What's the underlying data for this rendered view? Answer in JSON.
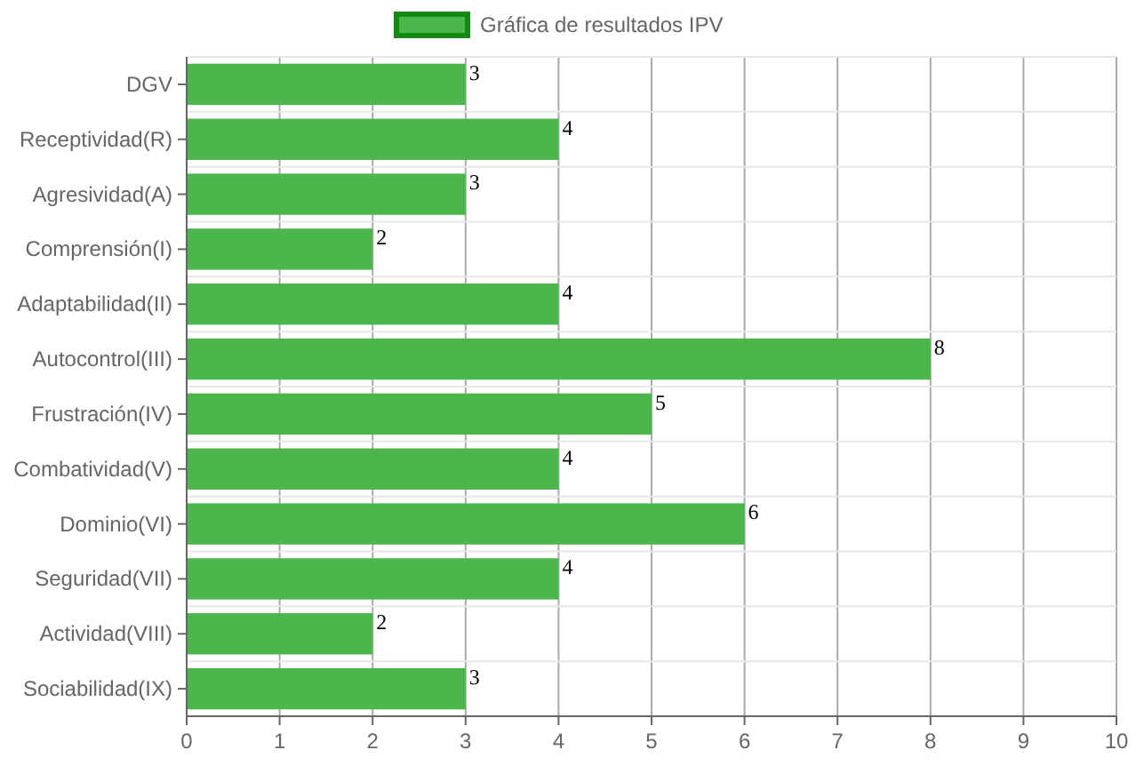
{
  "chart_data": {
    "type": "bar",
    "orientation": "horizontal",
    "categories": [
      "DGV",
      "Receptividad(R)",
      "Agresividad(A)",
      "Comprensión(I)",
      "Adaptabilidad(II)",
      "Autocontrol(III)",
      "Frustración(IV)",
      "Combatividad(V)",
      "Dominio(VI)",
      "Seguridad(VII)",
      "Actividad(VIII)",
      "Sociabilidad(IX)"
    ],
    "series": [
      {
        "name": "Gráfica de resultados IPV",
        "color": "#4cb54c",
        "values": [
          3,
          4,
          3,
          2,
          4,
          8,
          5,
          4,
          6,
          4,
          2,
          3
        ]
      }
    ],
    "xlim": [
      0,
      10
    ],
    "xticks": [
      0,
      1,
      2,
      3,
      4,
      5,
      6,
      7,
      8,
      9,
      10
    ],
    "grid": true,
    "legend": "top",
    "data_labels": true
  }
}
